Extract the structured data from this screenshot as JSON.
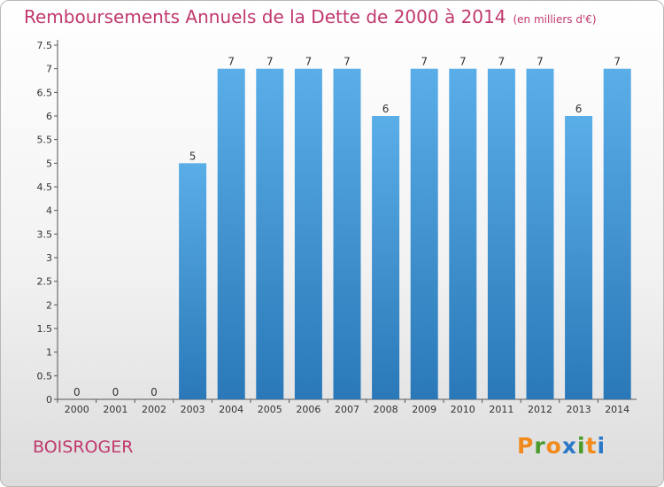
{
  "page": {
    "title_main": "Remboursements Annuels de la Dette de 2000 à 2014",
    "title_unit": "(en milliers d'€)",
    "place_name": "BOISROGER",
    "logo_text": "Proxiti"
  },
  "colors": {
    "title": "#c0386e",
    "bar_top": "#5aaee8",
    "bar_bottom": "#2a78b8",
    "logo_letters": [
      "#f08a1c",
      "#4a9a2a",
      "#f08a1c",
      "#2a78c8",
      "#4a9a2a",
      "#f08a1c",
      "#2a78c8"
    ]
  },
  "chart_data": {
    "type": "bar",
    "title": "Remboursements Annuels de la Dette de 2000 à 2014",
    "categories": [
      "2000",
      "2001",
      "2002",
      "2003",
      "2004",
      "2005",
      "2006",
      "2007",
      "2008",
      "2009",
      "2010",
      "2011",
      "2012",
      "2013",
      "2014"
    ],
    "values": [
      0,
      0,
      0,
      5,
      7,
      7,
      7,
      7,
      6,
      7,
      7,
      7,
      7,
      6,
      7
    ],
    "y_ticks": [
      "0",
      "0.5",
      "1",
      "1.5",
      "2",
      "2.5",
      "3",
      "3.5",
      "4",
      "4.5",
      "5",
      "5.5",
      "6",
      "6.5",
      "7",
      "7.5"
    ],
    "ylim": [
      0,
      7.5
    ],
    "grid": false,
    "xlabel": "",
    "ylabel": ""
  }
}
